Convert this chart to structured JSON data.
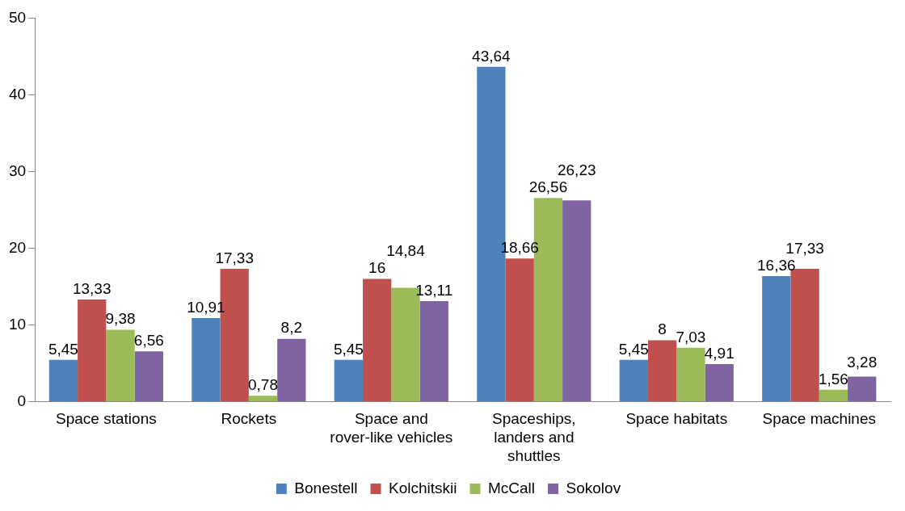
{
  "chart_data": {
    "type": "bar",
    "categories": [
      "Space stations",
      "Rockets",
      "Space and rover-like vehicles",
      "Spaceships, landers and shuttles",
      "Space habitats",
      "Space machines"
    ],
    "series": [
      {
        "name": "Bonestell",
        "color": "#4f81bd",
        "values": [
          5.45,
          10.91,
          5.45,
          43.64,
          5.45,
          16.36
        ],
        "value_labels": [
          "5,45",
          "10,91",
          "5,45",
          "43,64",
          "5,45",
          "16,36"
        ]
      },
      {
        "name": "Kolchitskii",
        "color": "#c0504d",
        "values": [
          13.33,
          17.33,
          16,
          18.66,
          8,
          17.33
        ],
        "value_labels": [
          "13,33",
          "17,33",
          "16",
          "18,66",
          "8",
          "17,33"
        ]
      },
      {
        "name": "McCall",
        "color": "#9bbb59",
        "values": [
          9.38,
          0.78,
          14.84,
          26.56,
          7.03,
          1.56
        ],
        "value_labels": [
          "9,38",
          "0,78",
          "14,84",
          "26,56",
          "7,03",
          "1,56"
        ]
      },
      {
        "name": "Sokolov",
        "color": "#8064a2",
        "values": [
          6.56,
          8.2,
          13.11,
          26.23,
          4.91,
          3.28
        ],
        "value_labels": [
          "6,56",
          "8,2",
          "13,11",
          "26,23",
          "4,91",
          "3,28"
        ]
      }
    ],
    "ylim": [
      0,
      50
    ],
    "yticks": [
      0,
      10,
      20,
      30,
      40,
      50
    ],
    "grid": false,
    "legend": "bottom"
  }
}
